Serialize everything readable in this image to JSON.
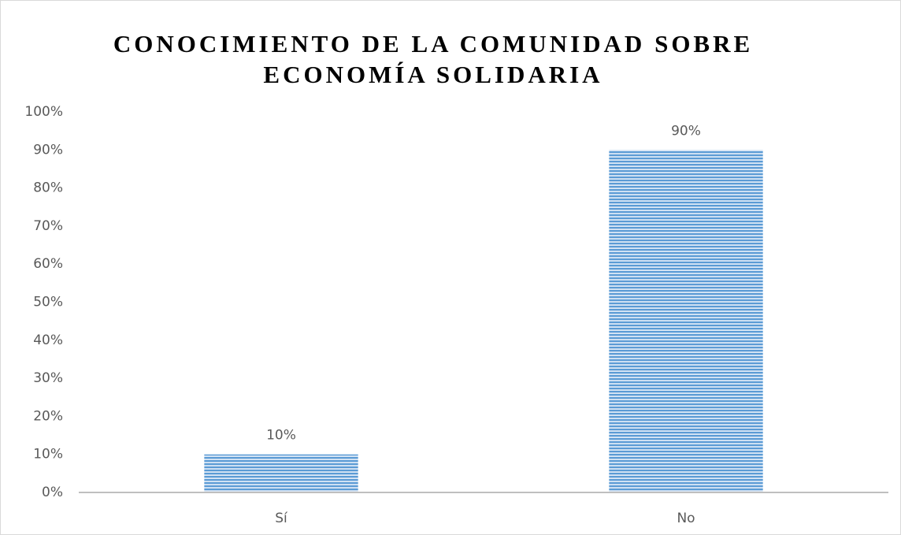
{
  "chart_data": {
    "type": "bar",
    "title": [
      "CONOCIMIENTO DE LA COMUNIDAD SOBRE",
      "ECONOMÍA SOLIDARIA"
    ],
    "categories": [
      "Sí",
      "No"
    ],
    "values": [
      10,
      90
    ],
    "value_labels": [
      "10%",
      "90%"
    ],
    "color": "#5b9bd5",
    "ylim": [
      0,
      100
    ],
    "yticks": [
      {
        "value": 0,
        "label": "0%"
      },
      {
        "value": 10,
        "label": "10%"
      },
      {
        "value": 20,
        "label": "20%"
      },
      {
        "value": 30,
        "label": "30%"
      },
      {
        "value": 40,
        "label": "40%"
      },
      {
        "value": 50,
        "label": "50%"
      },
      {
        "value": 60,
        "label": "60%"
      },
      {
        "value": 70,
        "label": "70%"
      },
      {
        "value": 80,
        "label": "80%"
      },
      {
        "value": 90,
        "label": "90%"
      },
      {
        "value": 100,
        "label": "100%"
      }
    ],
    "grid": false
  }
}
